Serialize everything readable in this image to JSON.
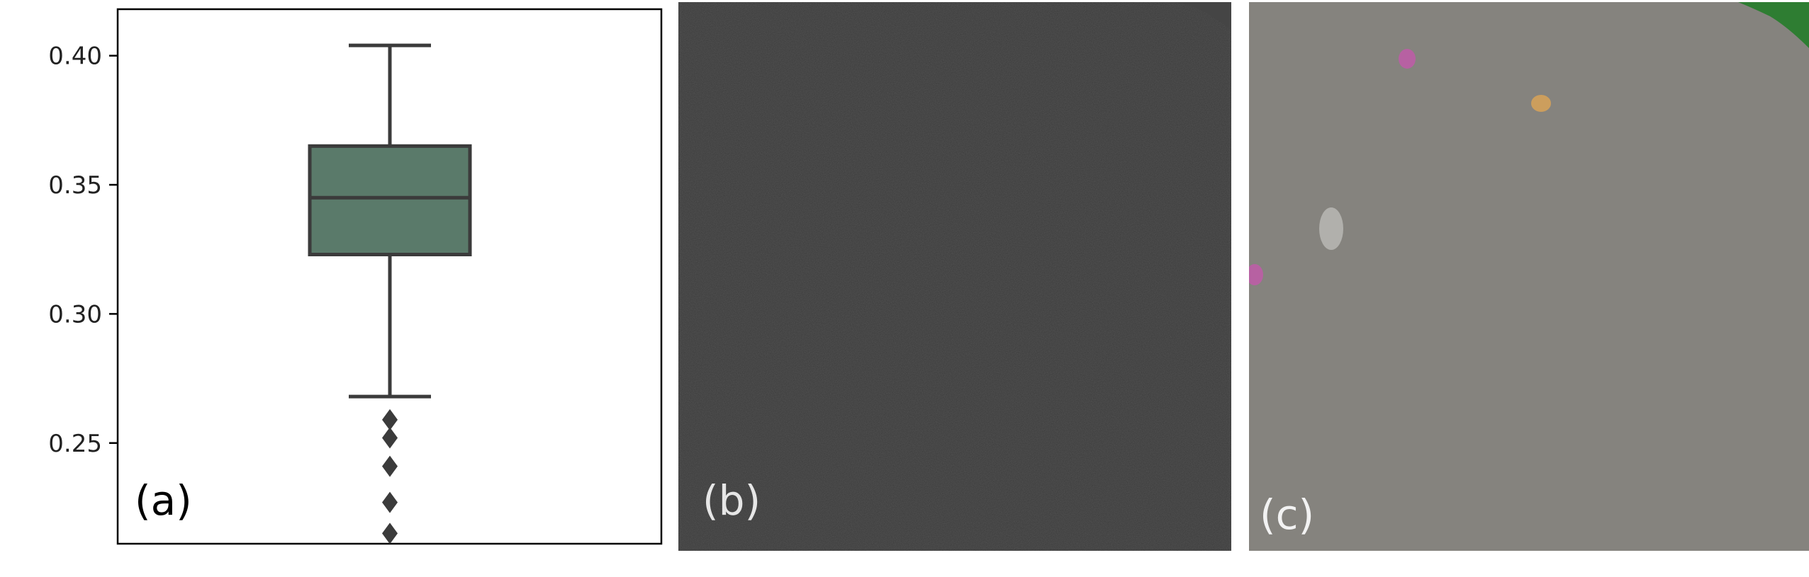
{
  "panels": {
    "a": {
      "label": "(a)"
    },
    "b": {
      "label": "(b)"
    },
    "c": {
      "label": "(c)"
    }
  },
  "colors": {
    "box_fill": "#5a7a6a",
    "box_line": "#3b3b3b",
    "panel_b_bg": "#3a3a3a",
    "panel_c_bg": "#85837e",
    "segment_green": "#2e7d32",
    "segment_pink": "#c05ca8",
    "segment_orange": "#d4a15a",
    "segment_white": "#b8b8b4"
  },
  "chart_data": {
    "type": "box",
    "title": "",
    "xlabel": "",
    "ylabel": "",
    "ylim": [
      0.211,
      0.418
    ],
    "yticks": [
      0.25,
      0.3,
      0.35,
      0.4
    ],
    "ytick_labels": [
      "0.25",
      "0.30",
      "0.35",
      "0.40"
    ],
    "grid": false,
    "box": {
      "whisker_low": 0.268,
      "q1": 0.323,
      "median": 0.345,
      "q3": 0.365,
      "whisker_high": 0.404
    },
    "outliers": [
      0.259,
      0.252,
      0.241,
      0.227,
      0.215
    ]
  }
}
